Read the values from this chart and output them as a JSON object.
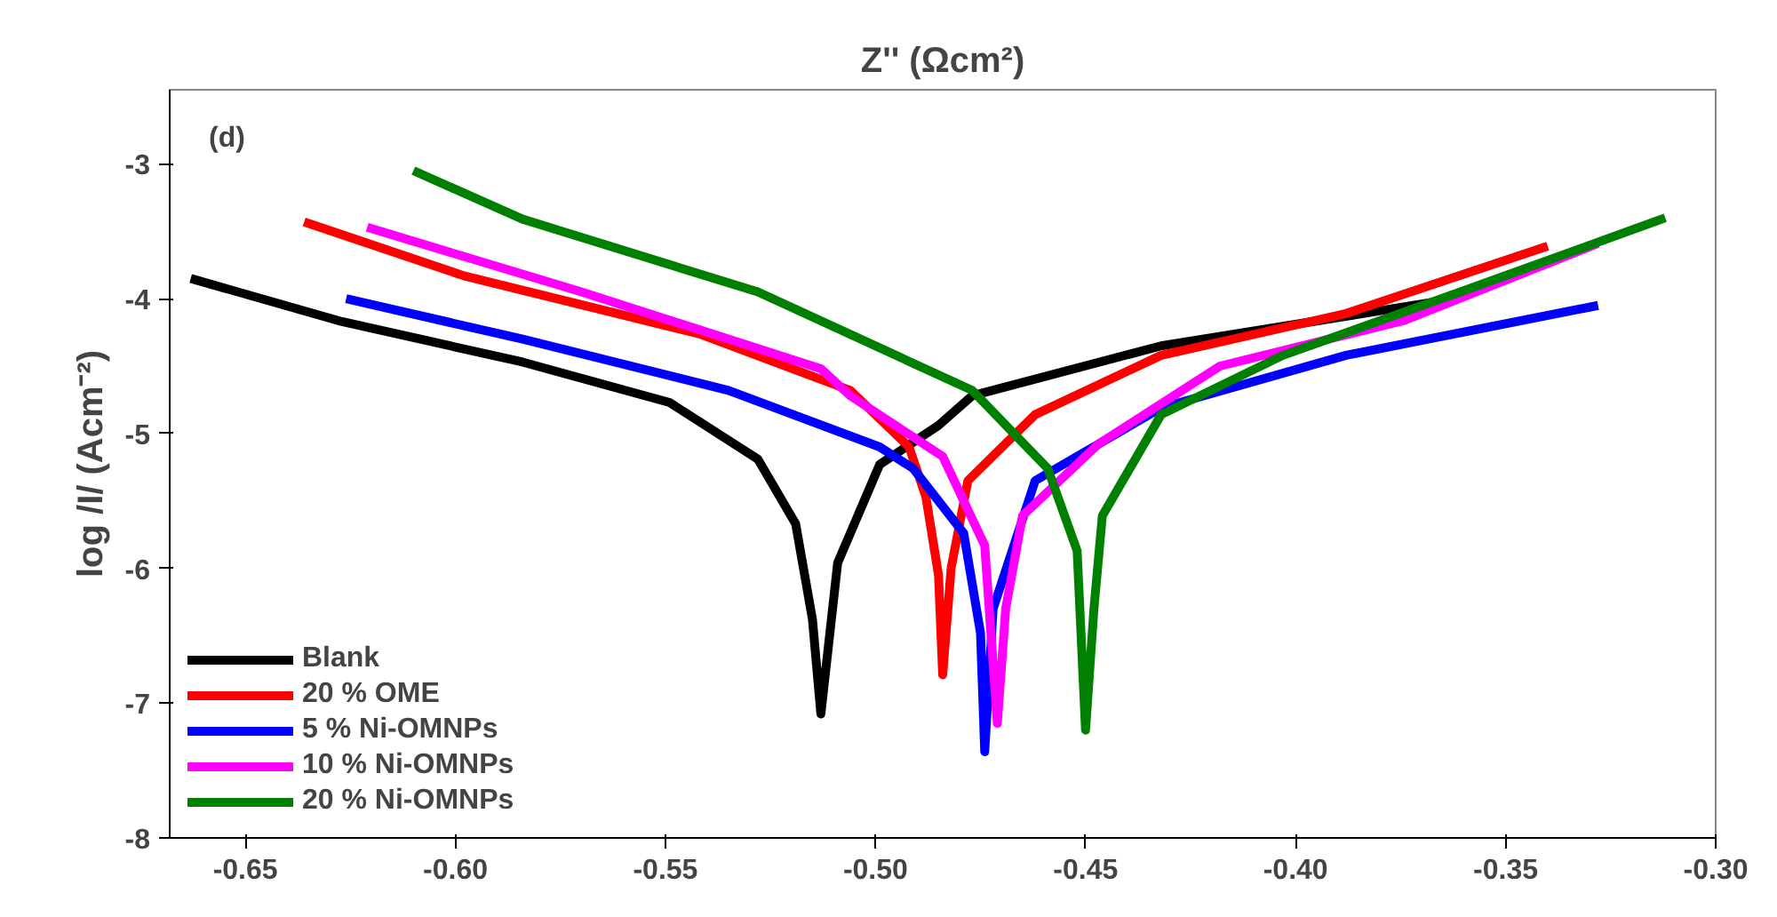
{
  "chart_data": {
    "type": "line",
    "title": "Z'' (Ωcm²)",
    "ylabel": "log /I/ (Acm⁻²)",
    "annotations": [
      "(d)"
    ],
    "xlim": [
      -0.668,
      -0.3
    ],
    "ylim": [
      -8,
      -2.45
    ],
    "xticks": [
      -0.65,
      {
        "value": -0.6,
        "label": "-0.60"
      },
      -0.55,
      {
        "value": -0.5,
        "label": "-0.50"
      },
      -0.45,
      {
        "value": -0.4,
        "label": "-0.40"
      },
      -0.35,
      {
        "value": -0.3,
        "label": "-0.30"
      }
    ],
    "yticks": [
      -8,
      -7,
      -6,
      -5,
      -4,
      -3
    ],
    "grid": false,
    "legend": "bottom left",
    "marker": "none",
    "line_style": "solid",
    "series": [
      {
        "name": "Blank",
        "color": "#000000",
        "x": [
          -0.663,
          -0.627,
          -0.584,
          -0.549,
          -0.528,
          -0.519,
          -0.515,
          -0.513,
          -0.509,
          -0.499,
          -0.485,
          -0.477,
          -0.432,
          -0.366
        ],
        "values": [
          -3.85,
          -4.17,
          -4.47,
          -4.77,
          -5.19,
          -5.67,
          -6.38,
          -7.08,
          -5.96,
          -5.23,
          -4.94,
          -4.72,
          -4.35,
          -4.02
        ]
      },
      {
        "name": "20 % OME",
        "color": "#ff0000",
        "x": [
          -0.636,
          -0.598,
          -0.542,
          -0.506,
          -0.492,
          -0.488,
          -0.485,
          -0.484,
          -0.482,
          -0.478,
          -0.462,
          -0.432,
          -0.388,
          -0.34
        ],
        "values": [
          -3.43,
          -3.83,
          -4.26,
          -4.68,
          -5.1,
          -5.47,
          -6.05,
          -6.79,
          -6.0,
          -5.35,
          -4.86,
          -4.42,
          -4.11,
          -3.61
        ]
      },
      {
        "name": "5 % Ni-OMNPs",
        "color": "#0000ff",
        "x": [
          -0.626,
          -0.584,
          -0.535,
          -0.499,
          -0.491,
          -0.479,
          -0.475,
          -0.474,
          -0.472,
          -0.462,
          -0.432,
          -0.388,
          -0.328
        ],
        "values": [
          -4.0,
          -4.3,
          -4.68,
          -5.1,
          -5.26,
          -5.74,
          -6.48,
          -7.36,
          -6.3,
          -5.35,
          -4.81,
          -4.42,
          -4.05
        ]
      },
      {
        "name": "10 % Ni-OMNPs",
        "color": "#ff00ff",
        "x": [
          -0.621,
          -0.57,
          -0.513,
          -0.506,
          -0.484,
          -0.474,
          -0.471,
          -0.469,
          -0.465,
          -0.447,
          -0.418,
          -0.374,
          -0.328
        ],
        "values": [
          -3.47,
          -3.95,
          -4.52,
          -4.72,
          -5.17,
          -5.83,
          -7.15,
          -6.3,
          -5.61,
          -5.08,
          -4.5,
          -4.16,
          -3.59
        ]
      },
      {
        "name": "20 % Ni-OMNPs",
        "color": "#008000",
        "x": [
          -0.61,
          -0.584,
          -0.528,
          -0.477,
          -0.459,
          -0.452,
          -0.45,
          -0.448,
          -0.446,
          -0.432,
          -0.403,
          -0.359,
          -0.312
        ],
        "values": [
          -3.05,
          -3.41,
          -3.95,
          -4.68,
          -5.26,
          -5.87,
          -7.2,
          -6.3,
          -5.61,
          -4.86,
          -4.42,
          -3.93,
          -3.4
        ]
      }
    ]
  }
}
